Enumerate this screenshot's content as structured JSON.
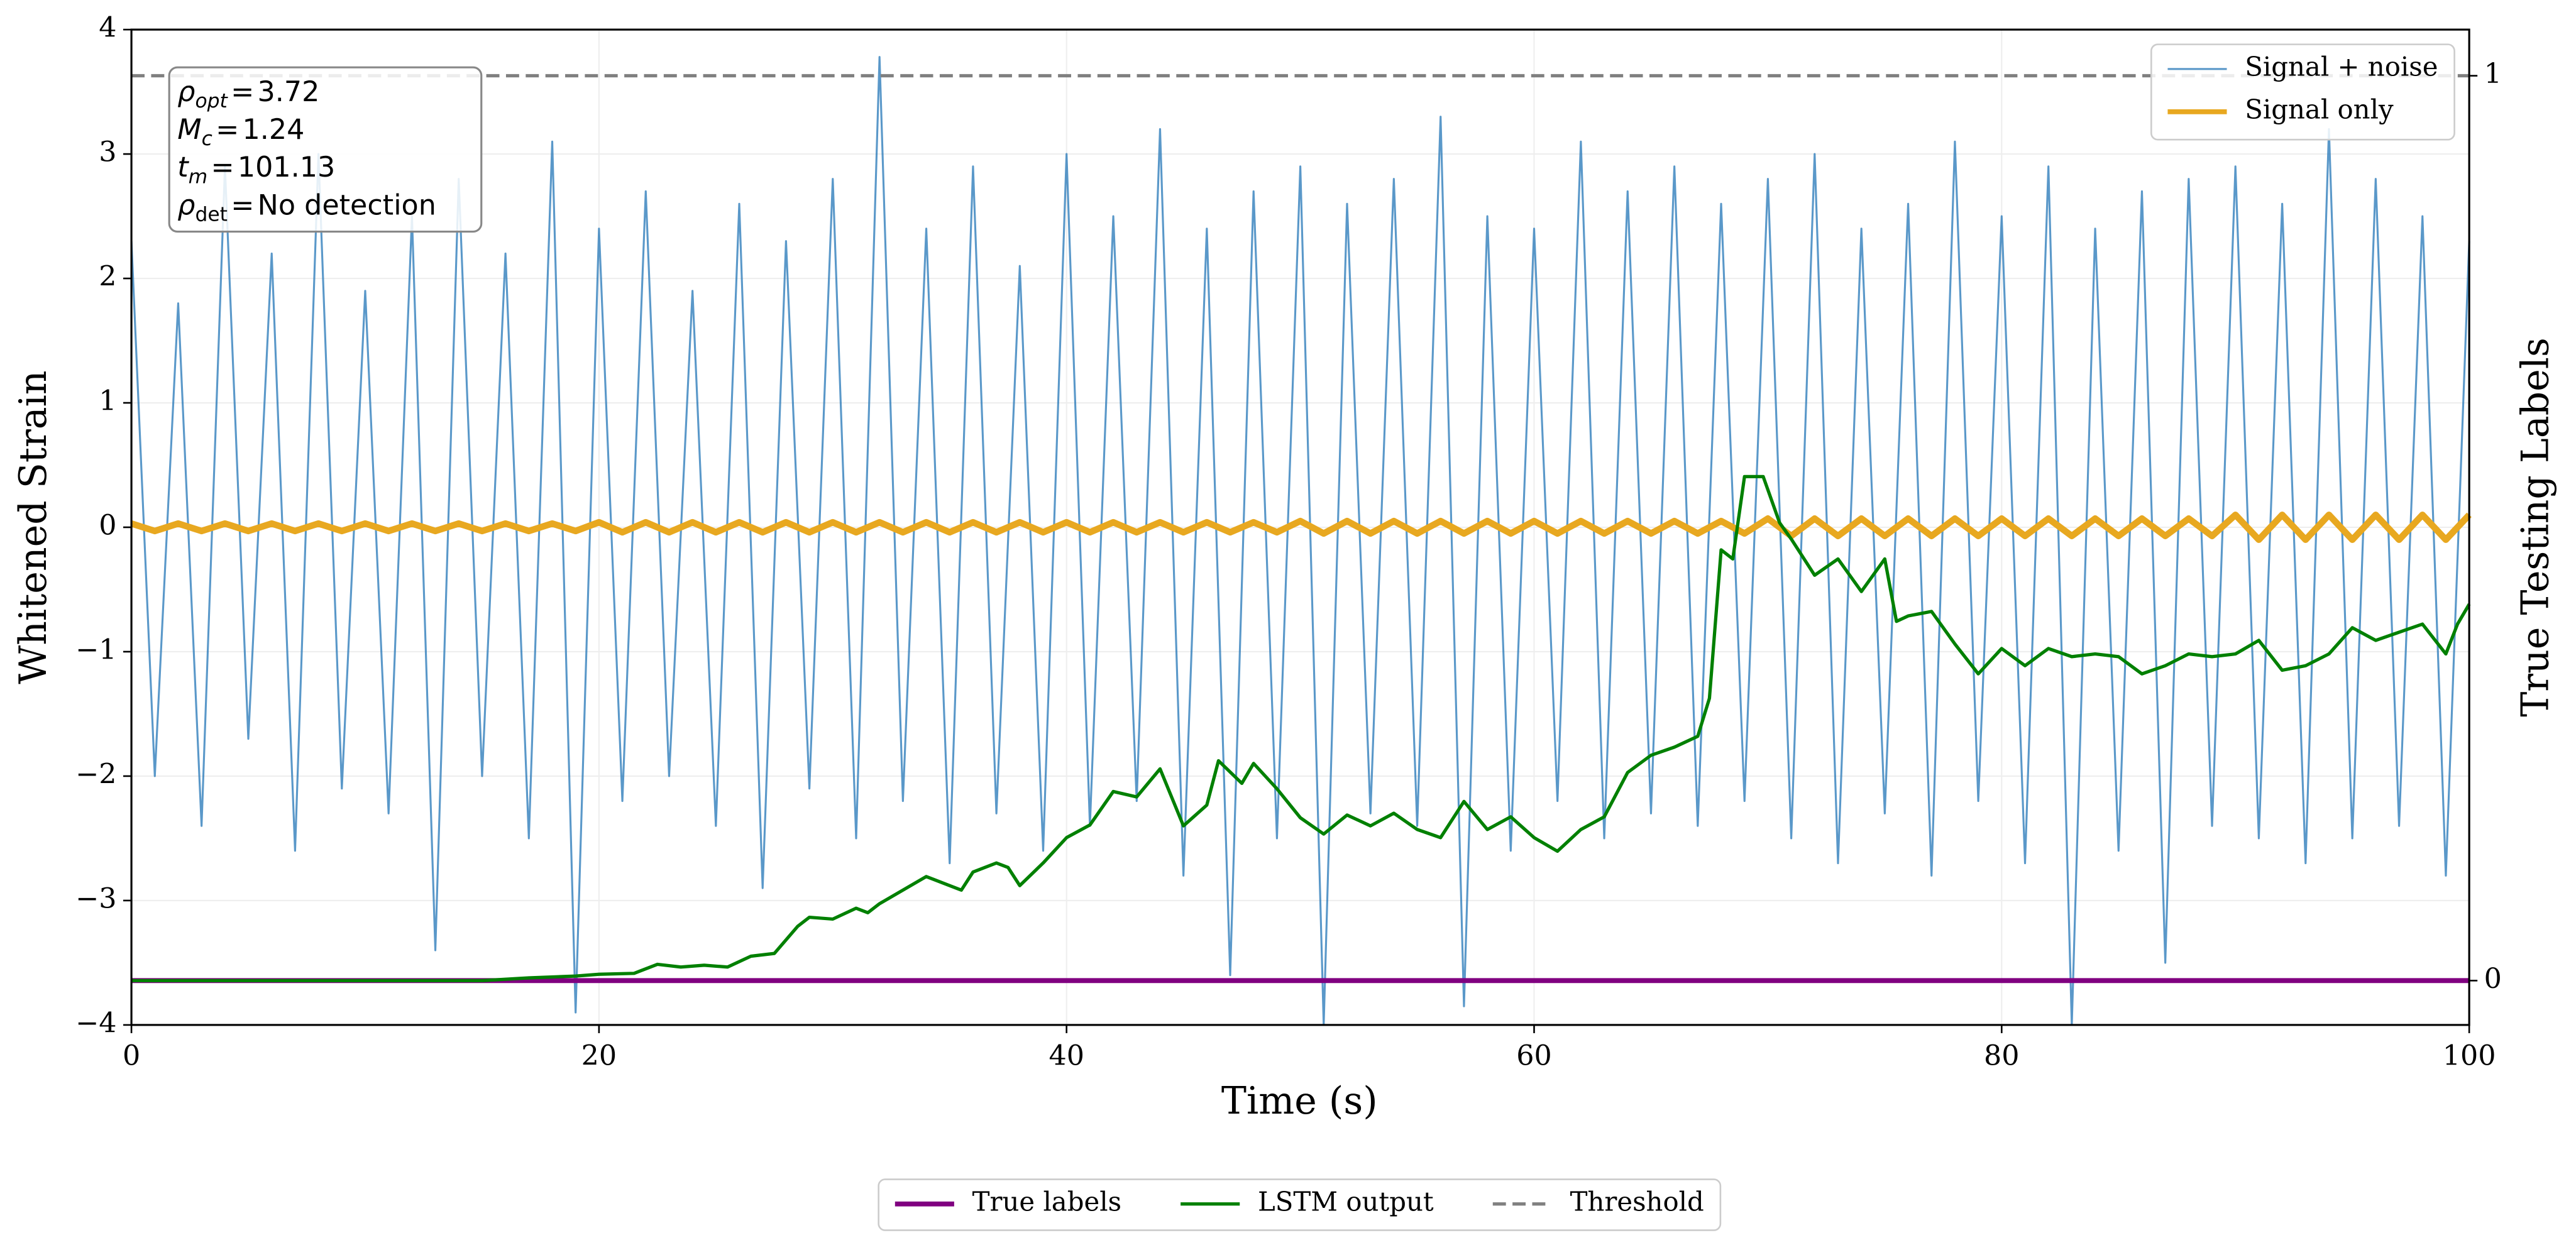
{
  "chart_data": {
    "type": "line",
    "xlabel": "Time (s)",
    "ylabel": "Whitened Strain",
    "y2label": "True Testing Labels",
    "xlim": [
      0,
      100
    ],
    "ylim": [
      -4,
      4
    ],
    "y2lim": [
      -0.049,
      1.051
    ],
    "xticks": [
      0,
      20,
      40,
      60,
      80,
      100
    ],
    "yticks": [
      {
        "value": -4,
        "label": "−4"
      },
      {
        "value": -3,
        "label": "−3"
      },
      {
        "value": -2,
        "label": "−2"
      },
      {
        "value": -1,
        "label": "−1"
      },
      0,
      1,
      2,
      3,
      4
    ],
    "y2ticks": [
      0,
      1
    ],
    "grid": true,
    "annotations": [
      {
        "symbol": "ρ",
        "sub": "opt",
        "relation": "=",
        "value": 3.72
      },
      {
        "symbol": "M",
        "sub": "c",
        "relation": "=",
        "value": 1.24
      },
      {
        "symbol": "t",
        "sub": "m",
        "relation": "=",
        "value": 101.13
      },
      {
        "symbol": "ρ",
        "sub": "det",
        "relation": "=",
        "value": "No detection"
      }
    ],
    "series": [
      {
        "name": "Signal + noise",
        "color": "#2b7bba",
        "opacity": 0.78,
        "width": 1.2,
        "legend": "upper right",
        "x": [
          0,
          1,
          2,
          3,
          4,
          5,
          6,
          7,
          8,
          9,
          10,
          11,
          12,
          13,
          14,
          15,
          16,
          17,
          18,
          19,
          20,
          21,
          22,
          23,
          24,
          25,
          26,
          27,
          28,
          29,
          30,
          31,
          32,
          33,
          34,
          35,
          36,
          37,
          38,
          39,
          40,
          41,
          42,
          43,
          44,
          45,
          46,
          47,
          48,
          49,
          50,
          51,
          52,
          53,
          54,
          55,
          56,
          57,
          58,
          59,
          60,
          61,
          62,
          63,
          64,
          65,
          66,
          67,
          68,
          69,
          70,
          71,
          72,
          73,
          74,
          75,
          76,
          77,
          78,
          79,
          80,
          81,
          82,
          83,
          84,
          85,
          86,
          87,
          88,
          89,
          90,
          91,
          92,
          93,
          94,
          95,
          96,
          97,
          98,
          99,
          100
        ],
        "values": [
          2.3,
          -2.0,
          1.8,
          -2.4,
          2.9,
          -1.7,
          2.2,
          -2.6,
          3.0,
          -2.1,
          1.9,
          -2.3,
          2.5,
          -3.4,
          2.8,
          -2.0,
          2.2,
          -2.5,
          3.1,
          -3.9,
          2.4,
          -2.2,
          2.7,
          -2.0,
          1.9,
          -2.4,
          2.6,
          -2.9,
          2.3,
          -2.1,
          2.8,
          -2.5,
          3.78,
          -2.2,
          2.4,
          -2.7,
          2.9,
          -2.3,
          2.1,
          -2.6,
          3.0,
          -2.4,
          2.5,
          -2.2,
          3.2,
          -2.8,
          2.4,
          -3.6,
          2.7,
          -2.5,
          2.9,
          -4.0,
          2.6,
          -2.3,
          2.8,
          -2.4,
          3.3,
          -3.85,
          2.5,
          -2.6,
          2.4,
          -2.2,
          3.1,
          -2.5,
          2.7,
          -2.3,
          2.9,
          -2.4,
          2.6,
          -2.2,
          2.8,
          -2.5,
          3.0,
          -2.7,
          2.4,
          -2.3,
          2.6,
          -2.8,
          3.1,
          -2.2,
          2.5,
          -2.7,
          2.9,
          -4.0,
          2.4,
          -2.6,
          2.7,
          -3.5,
          2.8,
          -2.4,
          2.9,
          -2.5,
          2.6,
          -2.7,
          3.2,
          -2.5,
          2.8,
          -2.4,
          2.5,
          -2.8,
          2.3
        ]
      },
      {
        "name": "Signal only",
        "color": "#e8a820",
        "opacity": 1,
        "width": 4,
        "legend": "upper right",
        "x": [
          0,
          1,
          2,
          3,
          4,
          5,
          6,
          7,
          8,
          9,
          10,
          11,
          12,
          13,
          14,
          15,
          16,
          17,
          18,
          19,
          20,
          21,
          22,
          23,
          24,
          25,
          26,
          27,
          28,
          29,
          30,
          31,
          32,
          33,
          34,
          35,
          36,
          37,
          38,
          39,
          40,
          41,
          42,
          43,
          44,
          45,
          46,
          47,
          48,
          49,
          50,
          51,
          52,
          53,
          54,
          55,
          56,
          57,
          58,
          59,
          60,
          61,
          62,
          63,
          64,
          65,
          66,
          67,
          68,
          69,
          70,
          71,
          72,
          73,
          74,
          75,
          76,
          77,
          78,
          79,
          80,
          81,
          82,
          83,
          84,
          85,
          86,
          87,
          88,
          89,
          90,
          91,
          92,
          93,
          94,
          95,
          96,
          97,
          98,
          99,
          100
        ],
        "values": [
          0.03,
          -0.03,
          0.03,
          -0.03,
          0.03,
          -0.03,
          0.03,
          -0.03,
          0.03,
          -0.03,
          0.03,
          -0.03,
          0.03,
          -0.03,
          0.03,
          -0.03,
          0.03,
          -0.03,
          0.03,
          -0.03,
          0.04,
          -0.04,
          0.04,
          -0.04,
          0.04,
          -0.04,
          0.04,
          -0.04,
          0.04,
          -0.04,
          0.04,
          -0.04,
          0.04,
          -0.04,
          0.04,
          -0.04,
          0.04,
          -0.04,
          0.04,
          -0.04,
          0.04,
          -0.04,
          0.04,
          -0.04,
          0.04,
          -0.04,
          0.04,
          -0.04,
          0.04,
          -0.04,
          0.05,
          -0.05,
          0.05,
          -0.05,
          0.05,
          -0.05,
          0.05,
          -0.05,
          0.05,
          -0.05,
          0.05,
          -0.05,
          0.05,
          -0.05,
          0.05,
          -0.05,
          0.05,
          -0.05,
          0.05,
          -0.05,
          0.07,
          -0.07,
          0.07,
          -0.07,
          0.07,
          -0.07,
          0.07,
          -0.07,
          0.07,
          -0.07,
          0.07,
          -0.07,
          0.07,
          -0.07,
          0.07,
          -0.07,
          0.07,
          -0.07,
          0.07,
          -0.07,
          0.1,
          -0.1,
          0.1,
          -0.1,
          0.1,
          -0.1,
          0.1,
          -0.1,
          0.1,
          -0.1,
          0.1
        ]
      },
      {
        "name": "True labels",
        "color": "#800080",
        "opacity": 1,
        "width": 3,
        "axis": "y2",
        "legend": "lower center",
        "x": [
          0,
          100
        ],
        "values": [
          0,
          0
        ]
      },
      {
        "name": "LSTM output",
        "color": "#008000",
        "opacity": 1,
        "width": 2,
        "axis": "y2",
        "legend": "lower center",
        "x": [
          0,
          5,
          10,
          15,
          17,
          19,
          20,
          21.5,
          22.5,
          23.5,
          24.5,
          25.5,
          26.5,
          27.5,
          28.5,
          29,
          30,
          31,
          31.5,
          32,
          33,
          34,
          35,
          35.5,
          36,
          37,
          37.5,
          38,
          39,
          40,
          41,
          42,
          43,
          44,
          45,
          46,
          46.5,
          47.5,
          48,
          49,
          50,
          51,
          52,
          53,
          54,
          55,
          56,
          57,
          58,
          59,
          60,
          61,
          62,
          63,
          64,
          65,
          66,
          67,
          67.5,
          68,
          68.5,
          69,
          69.8,
          70.5,
          71,
          72,
          73,
          74,
          75,
          75.5,
          76,
          77,
          78,
          79,
          80,
          81,
          82,
          83,
          84,
          85,
          86,
          87,
          88,
          89,
          90,
          91,
          92,
          93,
          94,
          95,
          96,
          97,
          98,
          99,
          99.5,
          100
        ],
        "values": [
          0,
          0,
          0,
          0,
          0.003,
          0.005,
          0.007,
          0.008,
          0.018,
          0.015,
          0.017,
          0.015,
          0.027,
          0.03,
          0.06,
          0.07,
          0.068,
          0.08,
          0.075,
          0.085,
          0.1,
          0.115,
          0.105,
          0.1,
          0.12,
          0.13,
          0.125,
          0.105,
          0.13,
          0.158,
          0.172,
          0.209,
          0.203,
          0.234,
          0.171,
          0.194,
          0.243,
          0.218,
          0.24,
          0.212,
          0.18,
          0.162,
          0.183,
          0.171,
          0.185,
          0.167,
          0.158,
          0.198,
          0.167,
          0.181,
          0.158,
          0.143,
          0.167,
          0.181,
          0.23,
          0.249,
          0.258,
          0.27,
          0.312,
          0.476,
          0.466,
          0.557,
          0.557,
          0.506,
          0.488,
          0.448,
          0.466,
          0.43,
          0.466,
          0.397,
          0.403,
          0.408,
          0.372,
          0.339,
          0.367,
          0.348,
          0.367,
          0.358,
          0.361,
          0.358,
          0.339,
          0.348,
          0.361,
          0.358,
          0.361,
          0.376,
          0.343,
          0.348,
          0.361,
          0.39,
          0.376,
          0.385,
          0.394,
          0.361,
          0.394,
          0.416
        ]
      },
      {
        "name": "Threshold",
        "color": "#808080",
        "opacity": 1,
        "width": 2,
        "dash": true,
        "axis": "y2",
        "legend": "lower center",
        "x": [
          0,
          100
        ],
        "values": [
          1,
          1
        ]
      }
    ]
  }
}
